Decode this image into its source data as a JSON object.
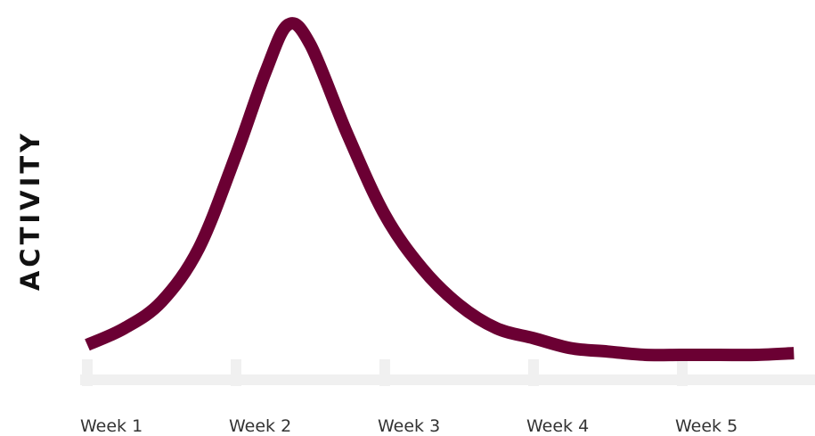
{
  "chart_data": {
    "type": "line",
    "title": "",
    "xlabel": "",
    "ylabel": "ACTIVITY",
    "categories": [
      "Week 1",
      "Week 2",
      "Week 3",
      "Week 4",
      "Week 5"
    ],
    "series": [
      {
        "values_note": "relative activity, unitless (no y scale printed)",
        "x": [
          0.0,
          0.25,
          0.5,
          0.75,
          1.0,
          1.2,
          1.35,
          1.5,
          1.75,
          2.0,
          2.25,
          2.5,
          2.75,
          3.0,
          3.25,
          3.5,
          3.75,
          4.0,
          4.25,
          4.5,
          4.75
        ],
        "values": [
          0.03,
          0.08,
          0.16,
          0.32,
          0.6,
          0.85,
          0.99,
          0.93,
          0.66,
          0.42,
          0.26,
          0.15,
          0.08,
          0.05,
          0.02,
          0.01,
          0.0,
          0.0,
          0.0,
          0.0,
          0.005
        ]
      }
    ],
    "xlim": [
      0,
      4.75
    ],
    "ylim": [
      0,
      1.0
    ],
    "grid": false,
    "legend": "none",
    "line_color": "#6b0033",
    "axis_color": "#f0f0f0"
  }
}
